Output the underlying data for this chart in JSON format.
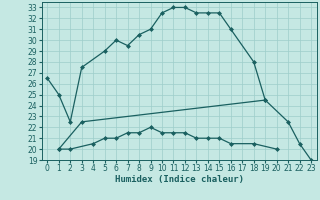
{
  "xlabel": "Humidex (Indice chaleur)",
  "bg_color": "#c5e8e3",
  "grid_color": "#9ececa",
  "line_color": "#1a6060",
  "xlim": [
    -0.5,
    23.5
  ],
  "ylim": [
    19,
    33.5
  ],
  "xticks": [
    0,
    1,
    2,
    3,
    4,
    5,
    6,
    7,
    8,
    9,
    10,
    11,
    12,
    13,
    14,
    15,
    16,
    17,
    18,
    19,
    20,
    21,
    22,
    23
  ],
  "yticks": [
    19,
    20,
    21,
    22,
    23,
    24,
    25,
    26,
    27,
    28,
    29,
    30,
    31,
    32,
    33
  ],
  "curve1_x": [
    0,
    1,
    2,
    3,
    5,
    6,
    7,
    8,
    9,
    10,
    11,
    12,
    13,
    14,
    15,
    16,
    18,
    19
  ],
  "curve1_y": [
    26.5,
    25.0,
    22.5,
    27.5,
    29.0,
    30.0,
    29.5,
    30.5,
    31.0,
    32.5,
    33.0,
    33.0,
    32.5,
    32.5,
    32.5,
    31.0,
    28.0,
    24.5
  ],
  "curve2_x": [
    1,
    3,
    19,
    21,
    22,
    23
  ],
  "curve2_y": [
    20.0,
    22.5,
    24.5,
    22.5,
    20.5,
    19.0
  ],
  "curve3_x": [
    1,
    2,
    4,
    5,
    6,
    7,
    8,
    9,
    10,
    11,
    12,
    13,
    14,
    15,
    16,
    18,
    20
  ],
  "curve3_y": [
    20.0,
    20.0,
    20.5,
    21.0,
    21.0,
    21.5,
    21.5,
    22.0,
    21.5,
    21.5,
    21.5,
    21.0,
    21.0,
    21.0,
    20.5,
    20.5,
    20.0
  ],
  "marker": "D",
  "markersize": 2.0,
  "linewidth": 0.9,
  "tick_labelsize": 5.5,
  "xlabel_fontsize": 6.5
}
